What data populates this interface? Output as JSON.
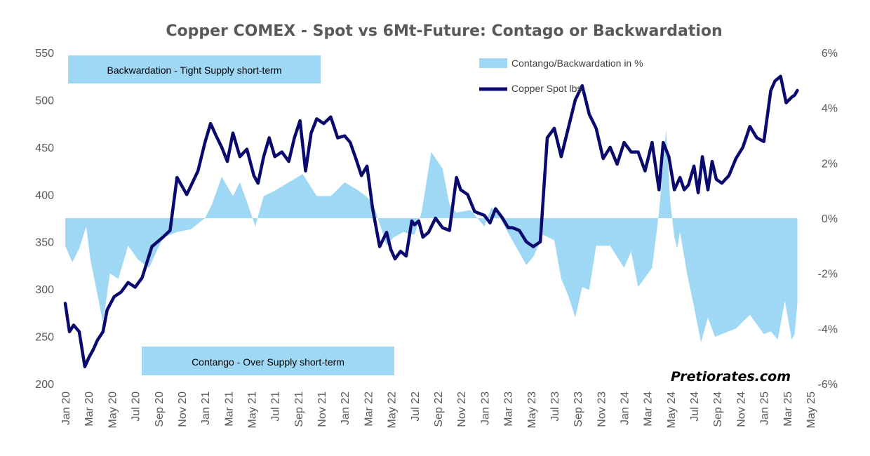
{
  "chart_data": {
    "type": "line",
    "title": "Copper COMEX - Spot vs 6Mt-Future: Contago or Backwardation",
    "x_tick_labels": [
      "Jan 20",
      "Mar 20",
      "May 20",
      "Jul 20",
      "Sep 20",
      "Nov 20",
      "Jan 21",
      "Mar 21",
      "May 21",
      "Jul 21",
      "Sep 21",
      "Nov 21",
      "Jan 22",
      "Mar 22",
      "May 22",
      "Jul 22",
      "Sep 22",
      "Nov 22",
      "Jan 23",
      "Mar 23",
      "May 23",
      "Jul 23",
      "Sep 23",
      "Nov 23",
      "Jan 24",
      "Mar 24",
      "May 24",
      "Jul 24",
      "Sep 24",
      "Nov 24",
      "Jan 25",
      "Mar 25",
      "May 25"
    ],
    "y_left": {
      "ylim": [
        200,
        550
      ],
      "ticks": [
        "200",
        "250",
        "300",
        "350",
        "400",
        "450",
        "500",
        "550"
      ]
    },
    "y_right": {
      "ylim": [
        -6,
        6
      ],
      "ticks": [
        "-6%",
        "-4%",
        "-2%",
        "0%",
        "2%",
        "4%",
        "6%"
      ]
    },
    "legend": {
      "placement": "top-right"
    },
    "grid": false,
    "annotations": {
      "backwardation_box": "Backwardation - Tight Supply short-term",
      "contango_box": "Contango - Over Supply short-term",
      "source": "Pretiorates.com"
    },
    "series": [
      {
        "name": "Contango/Backwardation in %",
        "axis": "right",
        "render": "area",
        "color": "#9FD8F5",
        "x": [
          2020.0,
          2020.05,
          2020.1,
          2020.15,
          2020.18,
          2020.22,
          2020.27,
          2020.32,
          2020.38,
          2020.45,
          2020.52,
          2020.6,
          2020.7,
          2020.8,
          2020.9,
          2021.0,
          2021.05,
          2021.12,
          2021.2,
          2021.25,
          2021.3,
          2021.36,
          2021.42,
          2021.5,
          2021.6,
          2021.7,
          2021.8,
          2021.9,
          2022.0,
          2022.1,
          2022.2,
          2022.3,
          2022.35,
          2022.42,
          2022.5,
          2022.55,
          2022.62,
          2022.7,
          2022.75,
          2022.8,
          2022.9,
          2023.0,
          2023.05,
          2023.1,
          2023.2,
          2023.3,
          2023.35,
          2023.42,
          2023.5,
          2023.55,
          2023.6,
          2023.65,
          2023.7,
          2023.75,
          2023.8,
          2023.9,
          2024.0,
          2024.05,
          2024.1,
          2024.2,
          2024.25,
          2024.3,
          2024.33,
          2024.36,
          2024.38,
          2024.4,
          2024.45,
          2024.5,
          2024.55,
          2024.6,
          2024.65,
          2024.7,
          2024.8,
          2024.9,
          2025.0,
          2025.05,
          2025.1,
          2025.15,
          2025.2,
          2025.22,
          2025.24
        ],
        "y": [
          -1.0,
          -1.6,
          -1.1,
          -0.3,
          -1.5,
          -2.5,
          -3.8,
          -2.0,
          -2.2,
          -1.0,
          -1.5,
          -1.8,
          -0.7,
          -0.5,
          -0.4,
          0.0,
          0.5,
          1.5,
          0.8,
          1.3,
          0.6,
          -0.3,
          0.8,
          1.0,
          1.3,
          1.6,
          0.8,
          0.8,
          1.3,
          1.0,
          0.6,
          -1.0,
          -0.7,
          -0.5,
          -0.6,
          0.2,
          2.4,
          1.8,
          0.5,
          0.2,
          0.3,
          -0.3,
          0.4,
          0.1,
          -0.8,
          -1.7,
          -1.4,
          -0.6,
          -0.8,
          -2.2,
          -2.8,
          -3.6,
          -2.5,
          -2.6,
          -1.0,
          -1.0,
          -1.8,
          -1.2,
          -2.5,
          -1.8,
          0.2,
          3.2,
          0.6,
          -0.7,
          -1.1,
          -0.5,
          -2.0,
          -3.2,
          -4.5,
          -3.6,
          -4.3,
          -4.2,
          -4.0,
          -3.5,
          -4.2,
          -4.1,
          -4.4,
          -3.0,
          -4.4,
          -4.2,
          -3.1
        ]
      },
      {
        "name": "Copper Spot lbs.",
        "axis": "left",
        "render": "line",
        "color": "#0A0A6E",
        "x": [
          2020.0,
          2020.03,
          2020.06,
          2020.1,
          2020.14,
          2020.17,
          2020.2,
          2020.23,
          2020.27,
          2020.3,
          2020.35,
          2020.4,
          2020.45,
          2020.5,
          2020.55,
          2020.62,
          2020.7,
          2020.75,
          2020.8,
          2020.87,
          2020.95,
          2021.0,
          2021.04,
          2021.08,
          2021.12,
          2021.16,
          2021.2,
          2021.25,
          2021.3,
          2021.35,
          2021.38,
          2021.42,
          2021.46,
          2021.5,
          2021.55,
          2021.6,
          2021.64,
          2021.68,
          2021.72,
          2021.76,
          2021.8,
          2021.85,
          2021.9,
          2021.95,
          2022.0,
          2022.04,
          2022.08,
          2022.12,
          2022.16,
          2022.2,
          2022.25,
          2022.3,
          2022.33,
          2022.36,
          2022.4,
          2022.44,
          2022.48,
          2022.5,
          2022.53,
          2022.56,
          2022.6,
          2022.65,
          2022.7,
          2022.75,
          2022.8,
          2022.83,
          2022.88,
          2022.93,
          2023.0,
          2023.04,
          2023.08,
          2023.13,
          2023.17,
          2023.2,
          2023.25,
          2023.3,
          2023.35,
          2023.4,
          2023.45,
          2023.5,
          2023.55,
          2023.6,
          2023.65,
          2023.7,
          2023.75,
          2023.8,
          2023.85,
          2023.9,
          2023.95,
          2024.0,
          2024.05,
          2024.1,
          2024.15,
          2024.2,
          2024.25,
          2024.28,
          2024.32,
          2024.36,
          2024.4,
          2024.43,
          2024.46,
          2024.5,
          2024.53,
          2024.56,
          2024.6,
          2024.63,
          2024.66,
          2024.7,
          2024.75,
          2024.8,
          2024.85,
          2024.9,
          2024.95,
          2025.0,
          2025.05,
          2025.08,
          2025.12,
          2025.16,
          2025.2,
          2025.22,
          2025.24
        ],
        "y": [
          285,
          255,
          262,
          255,
          218,
          228,
          236,
          246,
          255,
          278,
          292,
          297,
          307,
          302,
          312,
          345,
          355,
          362,
          418,
          400,
          425,
          455,
          475,
          462,
          450,
          435,
          465,
          440,
          448,
          420,
          412,
          440,
          460,
          440,
          445,
          435,
          460,
          478,
          425,
          465,
          480,
          475,
          482,
          460,
          462,
          455,
          438,
          420,
          430,
          385,
          345,
          360,
          342,
          332,
          340,
          335,
          372,
          368,
          372,
          355,
          360,
          375,
          365,
          362,
          418,
          405,
          400,
          382,
          378,
          370,
          385,
          375,
          365,
          365,
          362,
          350,
          345,
          350,
          460,
          470,
          440,
          470,
          500,
          515,
          485,
          470,
          438,
          450,
          432,
          455,
          445,
          445,
          425,
          455,
          405,
          455,
          440,
          405,
          418,
          405,
          410,
          430,
          402,
          440,
          405,
          435,
          416,
          412,
          420,
          438,
          450,
          472,
          460,
          456,
          510,
          520,
          525,
          497,
          503,
          505,
          510
        ]
      }
    ]
  }
}
